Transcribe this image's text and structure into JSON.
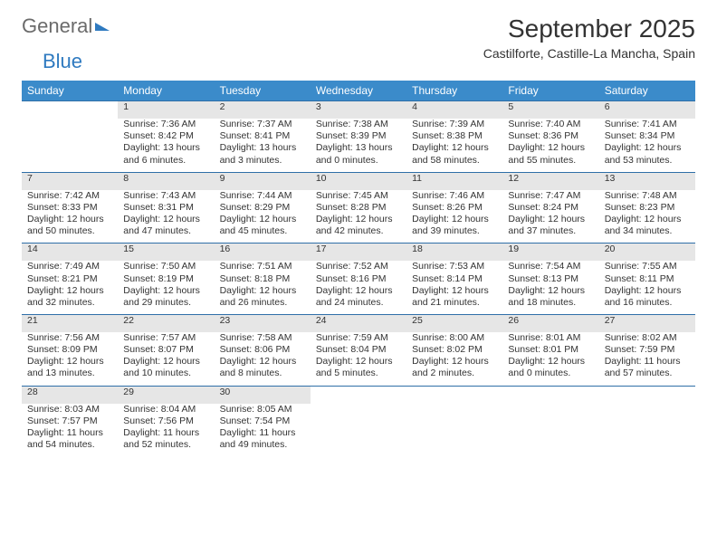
{
  "logo": {
    "text1": "General",
    "text2": "Blue"
  },
  "title": "September 2025",
  "location": "Castilforte, Castille-La Mancha, Spain",
  "colors": {
    "header_bg": "#3b8bca",
    "header_text": "#ffffff",
    "daynum_bg": "#e6e6e6",
    "rule": "#2f6fa8",
    "logo_gray": "#6b6b6b",
    "logo_blue": "#2f7ac0",
    "text": "#333333"
  },
  "day_headers": [
    "Sunday",
    "Monday",
    "Tuesday",
    "Wednesday",
    "Thursday",
    "Friday",
    "Saturday"
  ],
  "weeks": [
    [
      null,
      {
        "n": "1",
        "sr": "Sunrise: 7:36 AM",
        "ss": "Sunset: 8:42 PM",
        "d1": "Daylight: 13 hours",
        "d2": "and 6 minutes."
      },
      {
        "n": "2",
        "sr": "Sunrise: 7:37 AM",
        "ss": "Sunset: 8:41 PM",
        "d1": "Daylight: 13 hours",
        "d2": "and 3 minutes."
      },
      {
        "n": "3",
        "sr": "Sunrise: 7:38 AM",
        "ss": "Sunset: 8:39 PM",
        "d1": "Daylight: 13 hours",
        "d2": "and 0 minutes."
      },
      {
        "n": "4",
        "sr": "Sunrise: 7:39 AM",
        "ss": "Sunset: 8:38 PM",
        "d1": "Daylight: 12 hours",
        "d2": "and 58 minutes."
      },
      {
        "n": "5",
        "sr": "Sunrise: 7:40 AM",
        "ss": "Sunset: 8:36 PM",
        "d1": "Daylight: 12 hours",
        "d2": "and 55 minutes."
      },
      {
        "n": "6",
        "sr": "Sunrise: 7:41 AM",
        "ss": "Sunset: 8:34 PM",
        "d1": "Daylight: 12 hours",
        "d2": "and 53 minutes."
      }
    ],
    [
      {
        "n": "7",
        "sr": "Sunrise: 7:42 AM",
        "ss": "Sunset: 8:33 PM",
        "d1": "Daylight: 12 hours",
        "d2": "and 50 minutes."
      },
      {
        "n": "8",
        "sr": "Sunrise: 7:43 AM",
        "ss": "Sunset: 8:31 PM",
        "d1": "Daylight: 12 hours",
        "d2": "and 47 minutes."
      },
      {
        "n": "9",
        "sr": "Sunrise: 7:44 AM",
        "ss": "Sunset: 8:29 PM",
        "d1": "Daylight: 12 hours",
        "d2": "and 45 minutes."
      },
      {
        "n": "10",
        "sr": "Sunrise: 7:45 AM",
        "ss": "Sunset: 8:28 PM",
        "d1": "Daylight: 12 hours",
        "d2": "and 42 minutes."
      },
      {
        "n": "11",
        "sr": "Sunrise: 7:46 AM",
        "ss": "Sunset: 8:26 PM",
        "d1": "Daylight: 12 hours",
        "d2": "and 39 minutes."
      },
      {
        "n": "12",
        "sr": "Sunrise: 7:47 AM",
        "ss": "Sunset: 8:24 PM",
        "d1": "Daylight: 12 hours",
        "d2": "and 37 minutes."
      },
      {
        "n": "13",
        "sr": "Sunrise: 7:48 AM",
        "ss": "Sunset: 8:23 PM",
        "d1": "Daylight: 12 hours",
        "d2": "and 34 minutes."
      }
    ],
    [
      {
        "n": "14",
        "sr": "Sunrise: 7:49 AM",
        "ss": "Sunset: 8:21 PM",
        "d1": "Daylight: 12 hours",
        "d2": "and 32 minutes."
      },
      {
        "n": "15",
        "sr": "Sunrise: 7:50 AM",
        "ss": "Sunset: 8:19 PM",
        "d1": "Daylight: 12 hours",
        "d2": "and 29 minutes."
      },
      {
        "n": "16",
        "sr": "Sunrise: 7:51 AM",
        "ss": "Sunset: 8:18 PM",
        "d1": "Daylight: 12 hours",
        "d2": "and 26 minutes."
      },
      {
        "n": "17",
        "sr": "Sunrise: 7:52 AM",
        "ss": "Sunset: 8:16 PM",
        "d1": "Daylight: 12 hours",
        "d2": "and 24 minutes."
      },
      {
        "n": "18",
        "sr": "Sunrise: 7:53 AM",
        "ss": "Sunset: 8:14 PM",
        "d1": "Daylight: 12 hours",
        "d2": "and 21 minutes."
      },
      {
        "n": "19",
        "sr": "Sunrise: 7:54 AM",
        "ss": "Sunset: 8:13 PM",
        "d1": "Daylight: 12 hours",
        "d2": "and 18 minutes."
      },
      {
        "n": "20",
        "sr": "Sunrise: 7:55 AM",
        "ss": "Sunset: 8:11 PM",
        "d1": "Daylight: 12 hours",
        "d2": "and 16 minutes."
      }
    ],
    [
      {
        "n": "21",
        "sr": "Sunrise: 7:56 AM",
        "ss": "Sunset: 8:09 PM",
        "d1": "Daylight: 12 hours",
        "d2": "and 13 minutes."
      },
      {
        "n": "22",
        "sr": "Sunrise: 7:57 AM",
        "ss": "Sunset: 8:07 PM",
        "d1": "Daylight: 12 hours",
        "d2": "and 10 minutes."
      },
      {
        "n": "23",
        "sr": "Sunrise: 7:58 AM",
        "ss": "Sunset: 8:06 PM",
        "d1": "Daylight: 12 hours",
        "d2": "and 8 minutes."
      },
      {
        "n": "24",
        "sr": "Sunrise: 7:59 AM",
        "ss": "Sunset: 8:04 PM",
        "d1": "Daylight: 12 hours",
        "d2": "and 5 minutes."
      },
      {
        "n": "25",
        "sr": "Sunrise: 8:00 AM",
        "ss": "Sunset: 8:02 PM",
        "d1": "Daylight: 12 hours",
        "d2": "and 2 minutes."
      },
      {
        "n": "26",
        "sr": "Sunrise: 8:01 AM",
        "ss": "Sunset: 8:01 PM",
        "d1": "Daylight: 12 hours",
        "d2": "and 0 minutes."
      },
      {
        "n": "27",
        "sr": "Sunrise: 8:02 AM",
        "ss": "Sunset: 7:59 PM",
        "d1": "Daylight: 11 hours",
        "d2": "and 57 minutes."
      }
    ],
    [
      {
        "n": "28",
        "sr": "Sunrise: 8:03 AM",
        "ss": "Sunset: 7:57 PM",
        "d1": "Daylight: 11 hours",
        "d2": "and 54 minutes."
      },
      {
        "n": "29",
        "sr": "Sunrise: 8:04 AM",
        "ss": "Sunset: 7:56 PM",
        "d1": "Daylight: 11 hours",
        "d2": "and 52 minutes."
      },
      {
        "n": "30",
        "sr": "Sunrise: 8:05 AM",
        "ss": "Sunset: 7:54 PM",
        "d1": "Daylight: 11 hours",
        "d2": "and 49 minutes."
      },
      null,
      null,
      null,
      null
    ]
  ]
}
